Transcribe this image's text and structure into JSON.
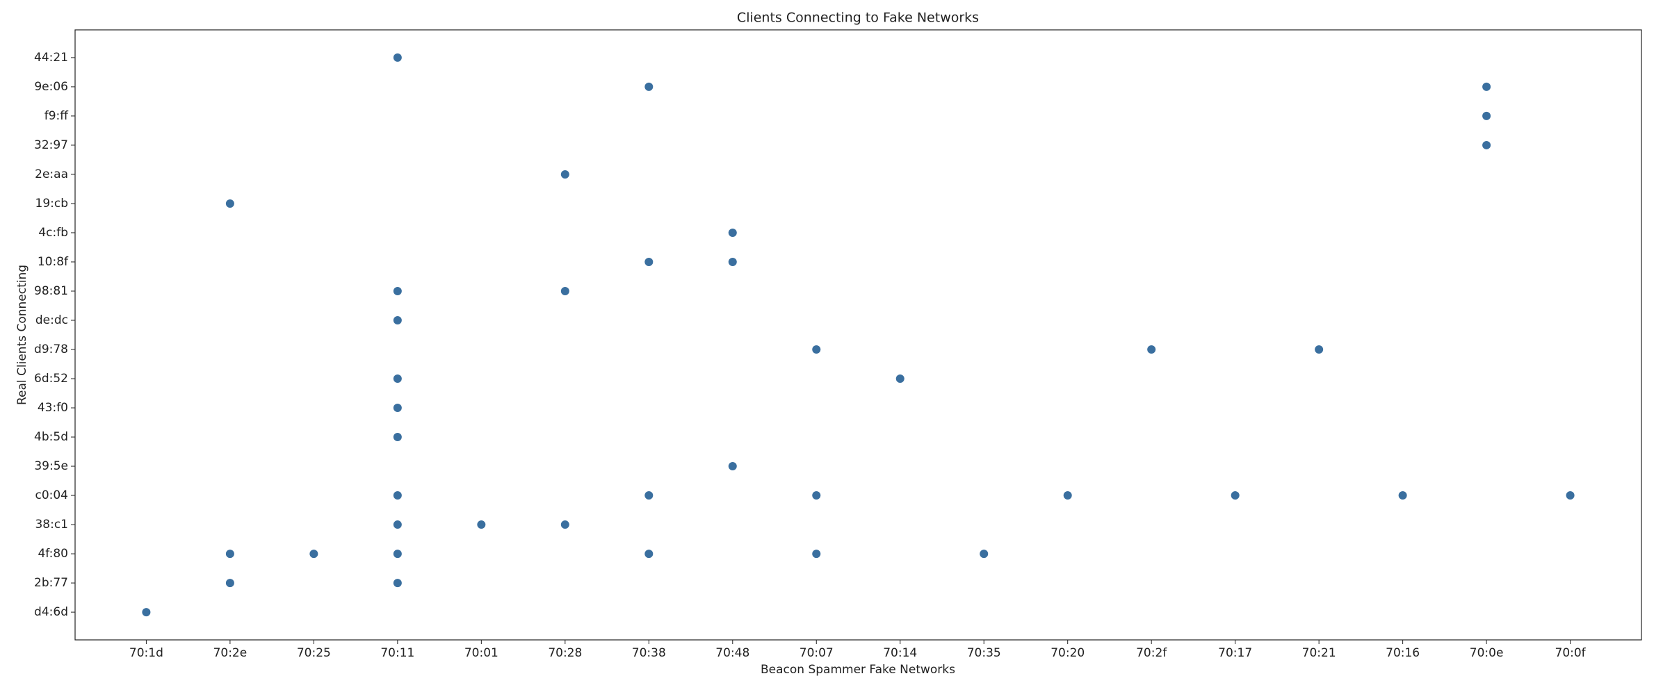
{
  "chart_data": {
    "type": "scatter",
    "title": "Clients Connecting to Fake Networks",
    "x_label": "Beacon Spammer Fake Networks",
    "y_label": "Real Clients Connecting",
    "categories": [
      "70:1d",
      "70:2e",
      "70:25",
      "70:11",
      "70:01",
      "70:28",
      "70:38",
      "70:48",
      "70:07",
      "70:14",
      "70:35",
      "70:20",
      "70:2f",
      "70:17",
      "70:21",
      "70:16",
      "70:0e",
      "70:0f"
    ],
    "y_categories": [
      "d4:6d",
      "2b:77",
      "4f:80",
      "38:c1",
      "c0:04",
      "39:5e",
      "4b:5d",
      "43:f0",
      "6d:52",
      "d9:78",
      "de:dc",
      "98:81",
      "10:8f",
      "4c:fb",
      "19:cb",
      "2e:aa",
      "32:97",
      "f9:ff",
      "9e:06",
      "44:21"
    ],
    "color": "#3a6f9f",
    "x": [
      "70:1d",
      "70:2e",
      "70:2e",
      "70:2e",
      "70:25",
      "70:11",
      "70:11",
      "70:11",
      "70:11",
      "70:11",
      "70:11",
      "70:11",
      "70:11",
      "70:11",
      "70:11",
      "70:01",
      "70:28",
      "70:28",
      "70:28",
      "70:38",
      "70:38",
      "70:38",
      "70:38",
      "70:48",
      "70:48",
      "70:48",
      "70:07",
      "70:07",
      "70:07",
      "70:14",
      "70:35",
      "70:20",
      "70:2f",
      "70:17",
      "70:21",
      "70:16",
      "70:0e",
      "70:0e",
      "70:0e",
      "70:0f"
    ],
    "y": [
      "d4:6d",
      "19:cb",
      "4f:80",
      "2b:77",
      "4f:80",
      "44:21",
      "98:81",
      "de:dc",
      "6d:52",
      "43:f0",
      "4b:5d",
      "c0:04",
      "38:c1",
      "4f:80",
      "2b:77",
      "38:c1",
      "2e:aa",
      "98:81",
      "38:c1",
      "9e:06",
      "10:8f",
      "c0:04",
      "4f:80",
      "4c:fb",
      "10:8f",
      "39:5e",
      "d9:78",
      "c0:04",
      "4f:80",
      "6d:52",
      "4f:80",
      "c0:04",
      "d9:78",
      "c0:04",
      "d9:78",
      "c0:04",
      "9e:06",
      "f9:ff",
      "32:97",
      "c0:04"
    ]
  }
}
